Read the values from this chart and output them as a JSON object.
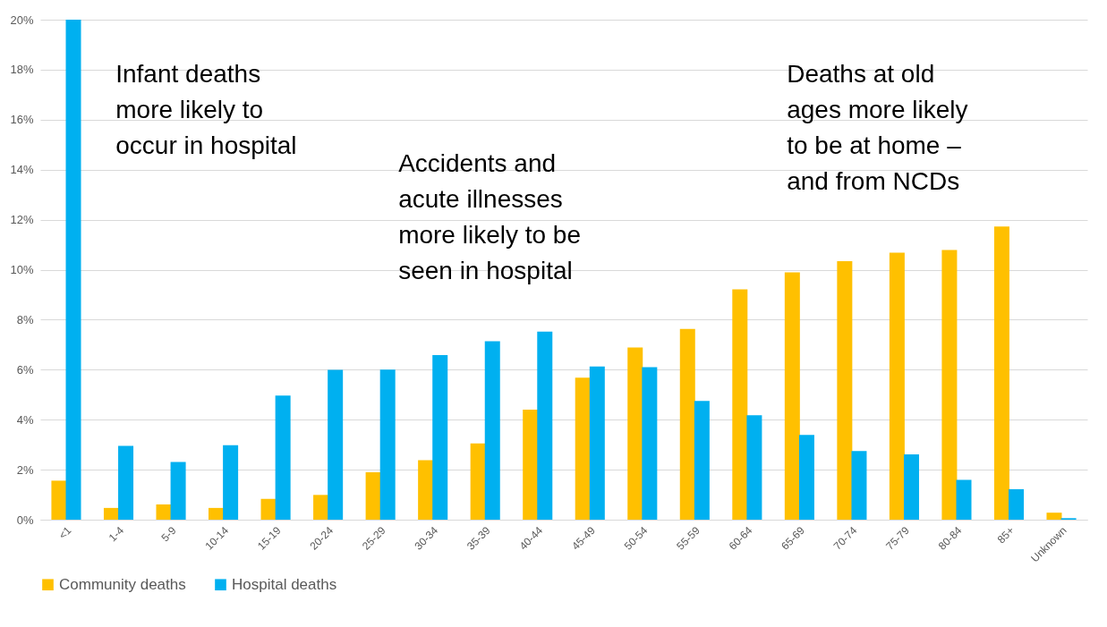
{
  "chart_data": {
    "type": "bar",
    "categories": [
      "<1",
      "1-4",
      "5-9",
      "10-14",
      "15-19",
      "20-24",
      "25-29",
      "30-34",
      "35-39",
      "40-44",
      "45-49",
      "50-54",
      "55-59",
      "60-64",
      "65-69",
      "70-74",
      "75-79",
      "80-84",
      "85+",
      "Unknown"
    ],
    "series": [
      {
        "name": "Community deaths",
        "color": "#ffc000",
        "values": [
          1.56,
          0.47,
          0.61,
          0.47,
          0.83,
          0.99,
          1.9,
          2.38,
          3.05,
          4.4,
          5.68,
          6.89,
          7.63,
          9.21,
          9.89,
          10.34,
          10.68,
          10.79,
          11.73,
          0.28
        ]
      },
      {
        "name": "Hospital deaths",
        "color": "#00b0f0",
        "values": [
          20,
          2.95,
          2.31,
          2.98,
          4.96,
          5.99,
          6.0,
          6.58,
          7.14,
          7.52,
          6.13,
          6.1,
          4.75,
          4.18,
          3.39,
          2.75,
          2.61,
          1.59,
          1.22,
          0.06
        ]
      }
    ],
    "ylim": [
      0,
      20
    ],
    "yticks": [
      {
        "value": 0,
        "label": "0%"
      },
      {
        "value": 2,
        "label": "2%"
      },
      {
        "value": 4,
        "label": "4%"
      },
      {
        "value": 6,
        "label": "6%"
      },
      {
        "value": 8,
        "label": "8%"
      },
      {
        "value": 10,
        "label": "10%"
      },
      {
        "value": 12,
        "label": "12%"
      },
      {
        "value": 14,
        "label": "14%"
      },
      {
        "value": 16,
        "label": "16%"
      },
      {
        "value": 18,
        "label": "18%"
      },
      {
        "value": 20,
        "label": "20%"
      }
    ],
    "grid": "y",
    "legend": "bottom",
    "annotations": [
      "Infant deaths more likely to occur in hospital",
      "Accidents and acute illnesses more likely to be seen in hospital",
      "Deaths at old ages more likely to be at home – and from NCDs"
    ]
  }
}
